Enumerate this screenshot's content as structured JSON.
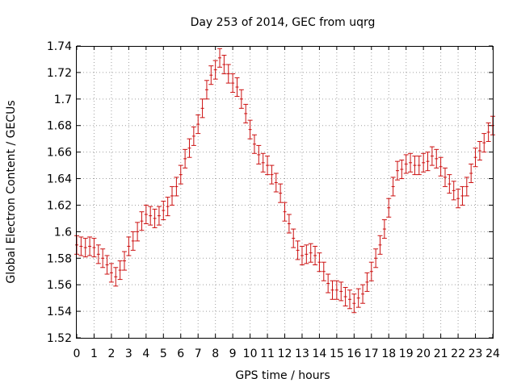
{
  "chart_data": {
    "type": "scatter",
    "title": "Day 253 of 2014, GEC from uqrg",
    "xlabel": "GPS time / hours",
    "ylabel": "Global Electron Content / GECUs",
    "xlim": [
      0,
      24
    ],
    "ylim": [
      1.52,
      1.74
    ],
    "x_ticks": [
      "0",
      "1",
      "2",
      "3",
      "4",
      "5",
      "6",
      "7",
      "8",
      "9",
      "10",
      "11",
      "12",
      "13",
      "14",
      "15",
      "16",
      "17",
      "18",
      "19",
      "20",
      "21",
      "22",
      "23",
      "24"
    ],
    "y_ticks": [
      "1.52",
      "1.54",
      "1.56",
      "1.58",
      "1.6",
      "1.62",
      "1.64",
      "1.66",
      "1.68",
      "1.7",
      "1.72",
      "1.74"
    ],
    "grid": true,
    "series_color": "#cc1111",
    "error_bar": 0.007,
    "series": [
      {
        "x": [
          0.0,
          0.25,
          0.5,
          0.75,
          1.0,
          1.25,
          1.5,
          1.75,
          2.0,
          2.25,
          2.5,
          2.75,
          3.0,
          3.25,
          3.5,
          3.75,
          4.0,
          4.25,
          4.5,
          4.75,
          5.0,
          5.25,
          5.5,
          5.75,
          6.0,
          6.25,
          6.5,
          6.75,
          7.0,
          7.25,
          7.5,
          7.75,
          8.0,
          8.25,
          8.5,
          8.75,
          9.0,
          9.25,
          9.5,
          9.75,
          10.0,
          10.25,
          10.5,
          10.75,
          11.0,
          11.25,
          11.5,
          11.75,
          12.0,
          12.25,
          12.5,
          12.75,
          13.0,
          13.25,
          13.5,
          13.75,
          14.0,
          14.25,
          14.5,
          14.75,
          15.0,
          15.25,
          15.5,
          15.75,
          16.0,
          16.25,
          16.5,
          16.75,
          17.0,
          17.25,
          17.5,
          17.75,
          18.0,
          18.25,
          18.5,
          18.75,
          19.0,
          19.25,
          19.5,
          19.75,
          20.0,
          20.25,
          20.5,
          20.75,
          21.0,
          21.25,
          21.5,
          21.75,
          22.0,
          22.25,
          22.5,
          22.75,
          23.0,
          23.25,
          23.5,
          23.75,
          24.0
        ],
        "y": [
          1.59,
          1.589,
          1.588,
          1.589,
          1.588,
          1.583,
          1.58,
          1.575,
          1.569,
          1.566,
          1.571,
          1.578,
          1.589,
          1.593,
          1.6,
          1.608,
          1.613,
          1.612,
          1.61,
          1.612,
          1.616,
          1.619,
          1.627,
          1.634,
          1.643,
          1.655,
          1.663,
          1.672,
          1.681,
          1.693,
          1.707,
          1.718,
          1.722,
          1.731,
          1.726,
          1.719,
          1.712,
          1.709,
          1.7,
          1.689,
          1.677,
          1.666,
          1.658,
          1.652,
          1.65,
          1.643,
          1.637,
          1.629,
          1.615,
          1.606,
          1.595,
          1.586,
          1.582,
          1.583,
          1.584,
          1.582,
          1.577,
          1.57,
          1.561,
          1.556,
          1.556,
          1.555,
          1.551,
          1.549,
          1.546,
          1.55,
          1.553,
          1.562,
          1.57,
          1.58,
          1.59,
          1.602,
          1.618,
          1.634,
          1.646,
          1.647,
          1.651,
          1.652,
          1.65,
          1.65,
          1.652,
          1.653,
          1.657,
          1.655,
          1.649,
          1.641,
          1.636,
          1.631,
          1.625,
          1.627,
          1.634,
          1.644,
          1.656,
          1.661,
          1.667,
          1.675,
          1.68
        ]
      }
    ]
  }
}
